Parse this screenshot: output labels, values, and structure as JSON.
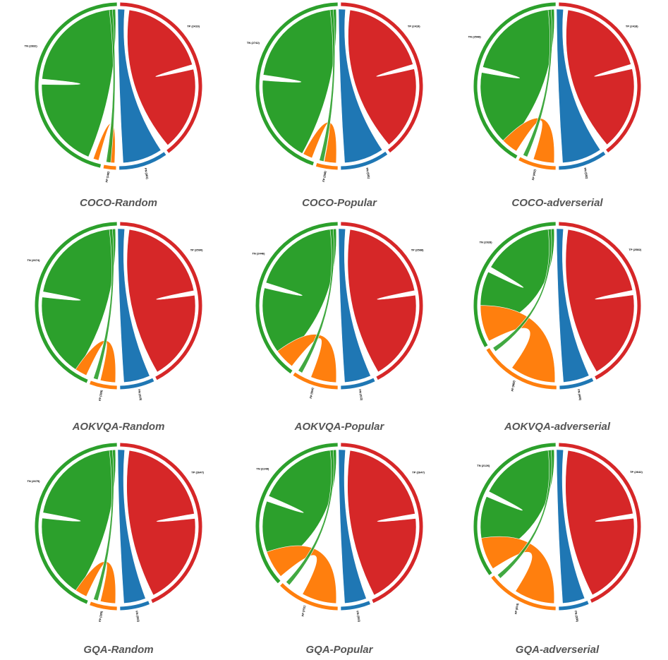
{
  "colors": {
    "TP": "#d62728",
    "TN": "#2ca02c",
    "FP": "#ff7f0e",
    "FN": "#1f77b4",
    "caption": "#555555"
  },
  "chart_data": [
    {
      "type": "chord",
      "title": "COCO-Random",
      "labels": {
        "TP": "TP (2419)",
        "TN": "TN (2832)",
        "FP": "FP (148)",
        "FN": "FN (581)"
      },
      "values": {
        "TP": 2419,
        "TN": 2832,
        "FP": 148,
        "FN": 581
      }
    },
    {
      "type": "chord",
      "title": "COCO-Popular",
      "labels": {
        "TP": "TP (2419)",
        "TN": "TN (2742)",
        "FP": "FP (258)",
        "FN": "FN (581)"
      },
      "values": {
        "TP": 2419,
        "TN": 2742,
        "FP": 258,
        "FN": 581
      }
    },
    {
      "type": "chord",
      "title": "COCO-adverserial",
      "labels": {
        "TP": "TP (2418)",
        "TN": "TN (2548)",
        "FP": "FP (452)",
        "FN": "FN (582)"
      },
      "values": {
        "TP": 2418,
        "TN": 2548,
        "FP": 452,
        "FN": 582
      }
    },
    {
      "type": "chord",
      "title": "AOKVQA-Random",
      "labels": {
        "TP": "TP (2590)",
        "TN": "TN (2674)",
        "FP": "FP (326)",
        "FN": "FN (410)"
      },
      "values": {
        "TP": 2590,
        "TN": 2674,
        "FP": 326,
        "FN": 410
      }
    },
    {
      "type": "chord",
      "title": "AOKVQA-Popular",
      "labels": {
        "TP": "TP (2588)",
        "TN": "TN (2446)",
        "FP": "FP (554)",
        "FN": "FN (412)"
      },
      "values": {
        "TP": 2588,
        "TN": 2446,
        "FP": 554,
        "FN": 412
      }
    },
    {
      "type": "chord",
      "title": "AOKVQA-adverserial",
      "labels": {
        "TP": "TP (2582)",
        "TN": "TN (2028)",
        "FP": "FP (982)",
        "FN": "FN (409)"
      },
      "values": {
        "TP": 2582,
        "TN": 2028,
        "FP": 982,
        "FN": 409
      }
    },
    {
      "type": "chord",
      "title": "GQA-Random",
      "labels": {
        "TP": "TP (2647)",
        "TN": "TN (2675)",
        "FP": "FP (325)",
        "FN": "FN (353)"
      },
      "values": {
        "TP": 2647,
        "TN": 2675,
        "FP": 325,
        "FN": 353
      }
    },
    {
      "type": "chord",
      "title": "GQA-Popular",
      "labels": {
        "TP": "TP (2647)",
        "TN": "TN (2249)",
        "FP": "FP (751)",
        "FN": "FN (353)"
      },
      "values": {
        "TP": 2647,
        "TN": 2249,
        "FP": 751,
        "FN": 353
      }
    },
    {
      "type": "chord",
      "title": "GQA-adverserial",
      "labels": {
        "TP": "TP (2642)",
        "TN": "TN (2126)",
        "FP": "FP (874)",
        "FN": "FN (358)"
      },
      "values": {
        "TP": 2642,
        "TN": 2126,
        "FP": 874,
        "FN": 358
      }
    }
  ]
}
